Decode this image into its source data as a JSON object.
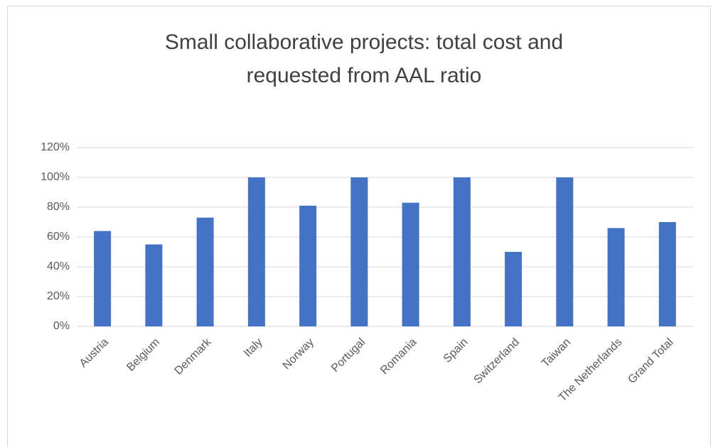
{
  "chart_data": {
    "type": "bar",
    "title": "Small collaborative projects: total cost and requested from AAL ratio",
    "categories": [
      "Austria",
      "Belgium",
      "Denmark",
      "Italy",
      "Norway",
      "Portugal",
      "Romania",
      "Spain",
      "Switzerland",
      "Taiwan",
      "The Netherlands",
      "Grand Total"
    ],
    "values": [
      64,
      55,
      73,
      100,
      81,
      100,
      83,
      100,
      50,
      100,
      66,
      70
    ],
    "color": "#4472c4",
    "ylim": [
      0,
      120
    ],
    "yticks": [
      {
        "value": 0,
        "label": "0%"
      },
      {
        "value": 20,
        "label": "20%"
      },
      {
        "value": 40,
        "label": "40%"
      },
      {
        "value": 60,
        "label": "60%"
      },
      {
        "value": 80,
        "label": "80%"
      },
      {
        "value": 100,
        "label": "100%"
      },
      {
        "value": 120,
        "label": "120%"
      }
    ],
    "grid": true
  }
}
